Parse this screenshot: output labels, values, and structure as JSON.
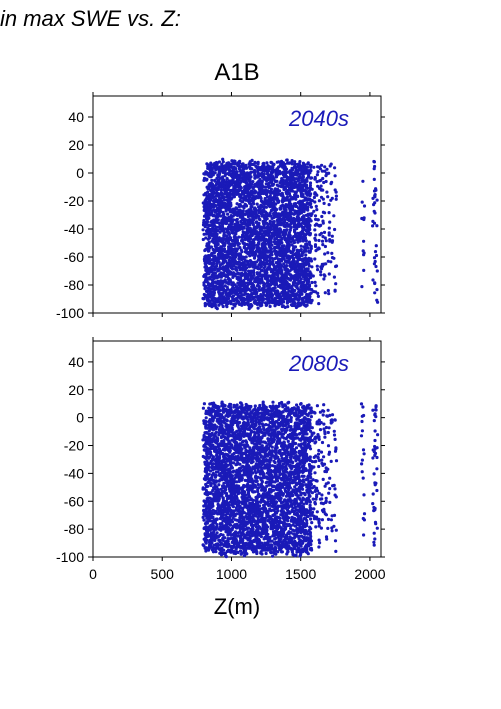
{
  "heading": "in max SWE vs. Z:",
  "scenario": "A1B",
  "xlabel": "Z(m)",
  "point_color": "#1a1ab8",
  "chart_data": [
    {
      "type": "scatter",
      "period": "2040s",
      "xlim": [
        0,
        2080
      ],
      "ylim": [
        -100,
        55
      ],
      "xticks": [
        0,
        500,
        1000,
        1500,
        2000
      ],
      "yticks": [
        -100,
        -80,
        -60,
        -40,
        -20,
        0,
        20,
        40
      ],
      "x_point_range": [
        800,
        2050
      ],
      "y_max": 10,
      "y_min": -97,
      "grid": false
    },
    {
      "type": "scatter",
      "period": "2080s",
      "xlim": [
        0,
        2080
      ],
      "ylim": [
        -100,
        55
      ],
      "xticks": [
        0,
        500,
        1000,
        1500,
        2000
      ],
      "yticks": [
        -100,
        -80,
        -60,
        -40,
        -20,
        0,
        20,
        40
      ],
      "x_point_range": [
        800,
        2050
      ],
      "y_max": 12,
      "y_min": -100,
      "grid": false
    }
  ]
}
